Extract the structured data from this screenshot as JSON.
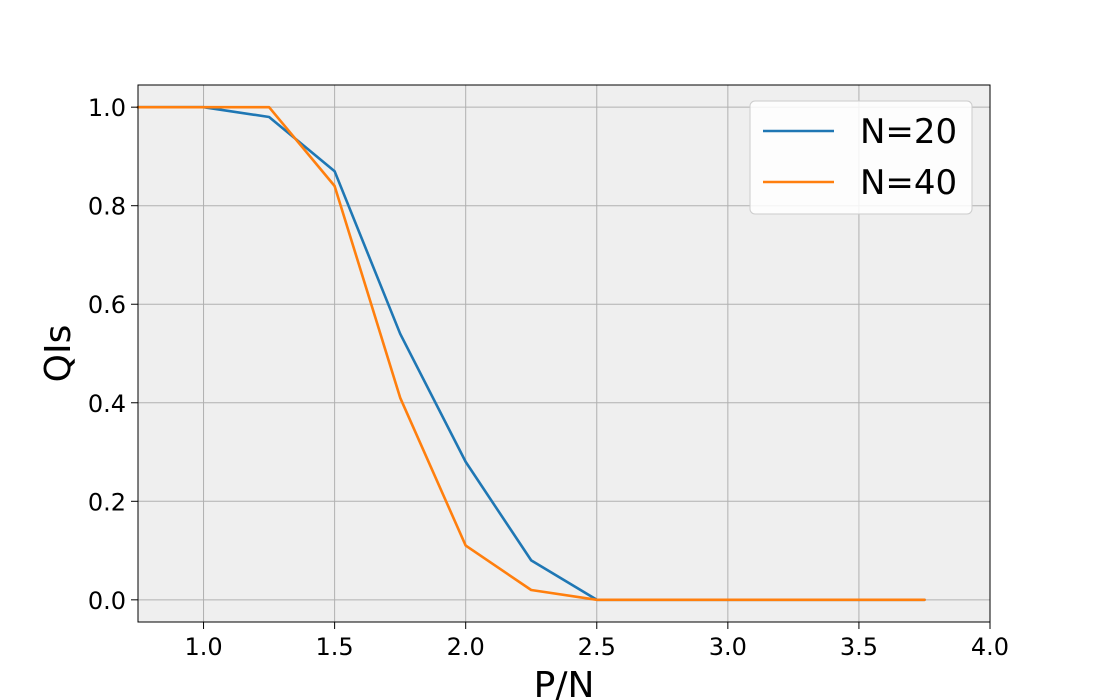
{
  "chart_data": {
    "type": "line",
    "xlabel": "P/N",
    "ylabel": "QIs",
    "xlim": [
      0.75,
      4.0
    ],
    "ylim": [
      -0.045,
      1.045
    ],
    "xticks": [
      "1.0",
      "1.5",
      "2.0",
      "2.5",
      "3.0",
      "3.5",
      "4.0"
    ],
    "yticks": [
      "0.0",
      "0.2",
      "0.4",
      "0.6",
      "0.8",
      "1.0"
    ],
    "grid": true,
    "legend_position": "top-right",
    "x": [
      0.75,
      1.0,
      1.25,
      1.5,
      1.75,
      2.0,
      2.25,
      2.5,
      2.75,
      3.0,
      3.25,
      3.5,
      3.75
    ],
    "series": [
      {
        "name": "N=20",
        "color": "#1f77b4",
        "values": [
          1.0,
          1.0,
          0.98,
          0.87,
          0.54,
          0.28,
          0.08,
          0.0,
          0.0,
          0.0,
          0.0,
          0.0,
          0.0
        ]
      },
      {
        "name": "N=40",
        "color": "#ff7f0e",
        "values": [
          1.0,
          1.0,
          1.0,
          0.84,
          0.41,
          0.11,
          0.02,
          0.0,
          0.0,
          0.0,
          0.0,
          0.0,
          0.0
        ]
      }
    ],
    "background_color": "#efefef",
    "grid_color": "#b0b0b0"
  }
}
